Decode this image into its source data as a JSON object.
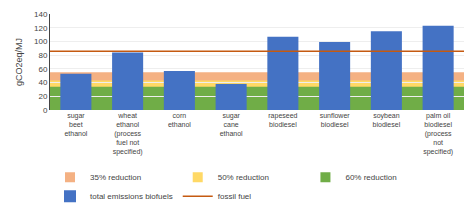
{
  "chart_data": {
    "type": "bar",
    "categories": [
      "sugar\nbeet\nethanol",
      "wheat\nethanol\n(process\nfuel not\nspecified)",
      "corn\nethanol",
      "sugar\ncane\nethanol",
      "rapeseed\nbiodiesel",
      "sunflower\nbiodiesel",
      "soybean\nbiodiesel",
      "palm oil\nbiodiesel\n(process\nnot\nspecified)"
    ],
    "series": [
      {
        "name": "35% reduction",
        "type": "band",
        "color": "#f4b183",
        "value": 55
      },
      {
        "name": "50% reduction",
        "type": "band",
        "color": "#ffd966",
        "value": 43
      },
      {
        "name": "60% reduction",
        "type": "band",
        "color": "#70ad47",
        "value": 34
      },
      {
        "name": "total emissions biofuels",
        "type": "bar",
        "color": "#4472c4",
        "values": [
          53,
          84,
          57,
          38,
          107,
          99,
          115,
          123
        ]
      },
      {
        "name": "fossil fuel",
        "type": "hline",
        "color": "#c55a11",
        "value": 85.8
      }
    ],
    "ylabel": "gCO2eq/MJ",
    "ylim": [
      0,
      140
    ],
    "yticks": [
      0,
      20,
      40,
      60,
      80,
      100,
      120,
      140
    ],
    "grid": true,
    "legend": "bottom"
  }
}
